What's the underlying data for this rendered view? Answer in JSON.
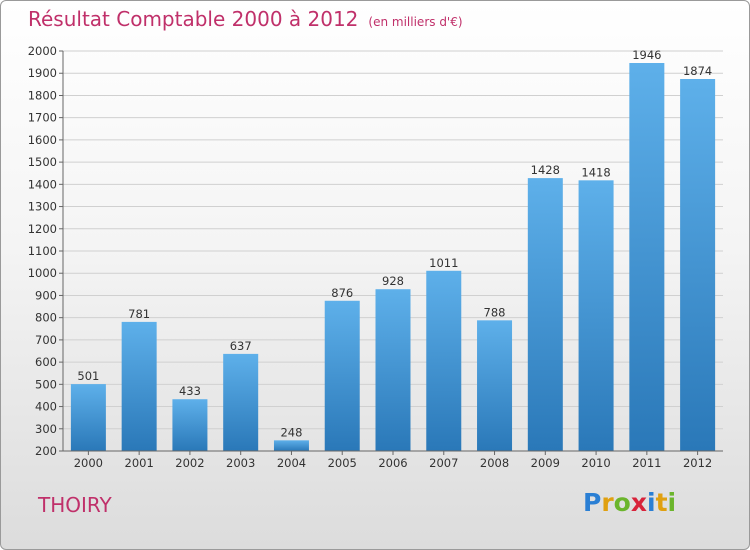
{
  "header": {
    "title": "Résultat Comptable 2000 à 2012",
    "subtitle": "(en milliers d'€)"
  },
  "footer": {
    "place": "THOIRY",
    "logo_letters": [
      "P",
      "r",
      "o",
      "x",
      "i",
      "t",
      "i"
    ]
  },
  "colors": {
    "accent": "#c0306a",
    "bar_light": "#5eb0ea",
    "bar_dark": "#2a78b8",
    "grid": "#d0d0d0"
  },
  "chart_data": {
    "type": "bar",
    "title": "Résultat Comptable 2000 à 2012",
    "subtitle": "(en milliers d'€)",
    "categories": [
      "2000",
      "2001",
      "2002",
      "2003",
      "2004",
      "2005",
      "2006",
      "2007",
      "2008",
      "2009",
      "2010",
      "2011",
      "2012"
    ],
    "values": [
      501,
      781,
      433,
      637,
      248,
      876,
      928,
      1011,
      788,
      1428,
      1418,
      1946,
      1874
    ],
    "ylim": [
      200,
      2000
    ],
    "yticks": [
      200,
      300,
      400,
      500,
      600,
      700,
      800,
      900,
      1000,
      1100,
      1200,
      1300,
      1400,
      1500,
      1600,
      1700,
      1800,
      1900,
      2000
    ],
    "grid": true,
    "data_labels": true
  }
}
